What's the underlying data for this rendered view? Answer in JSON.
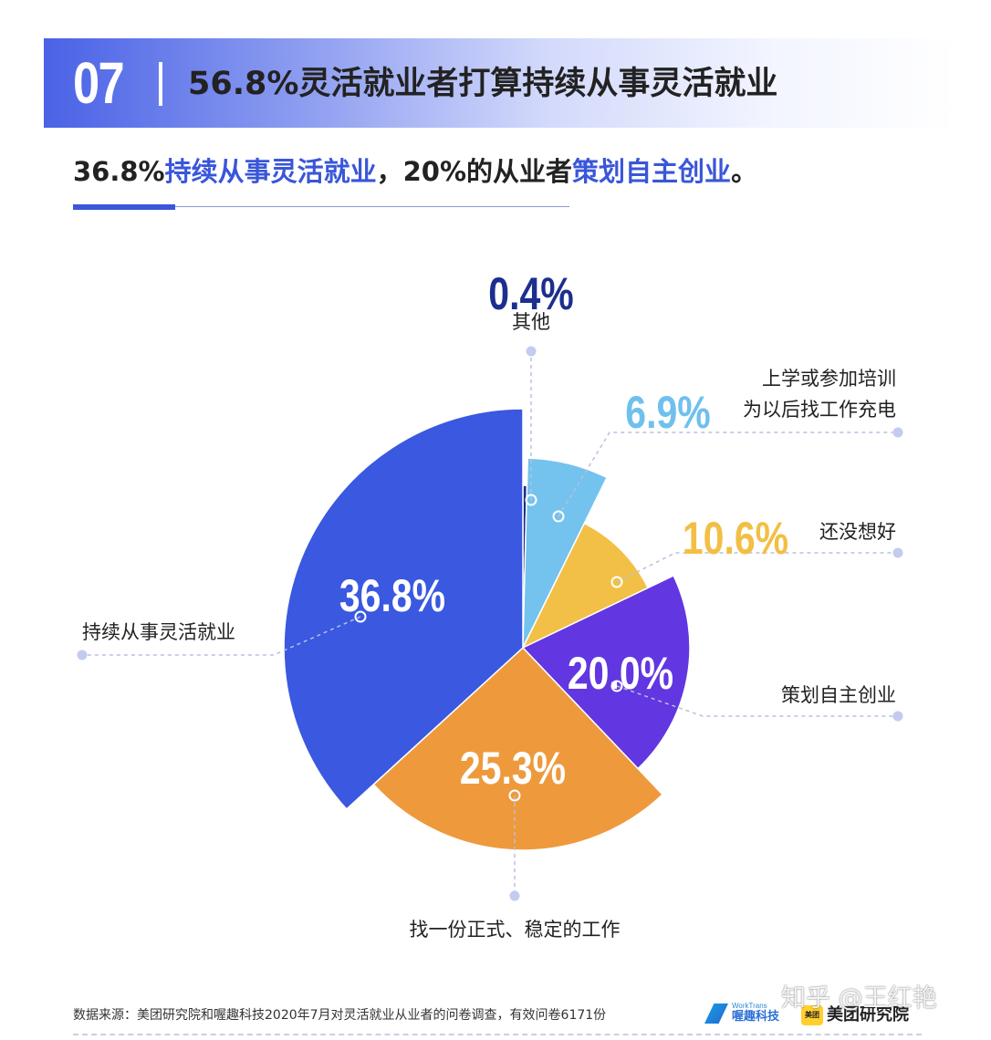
{
  "header": {
    "number": "07",
    "title": "56.8%灵活就业者打算持续从事灵活就业"
  },
  "subtitle": {
    "part1": "36.8%",
    "highlight1": "持续从事灵活就业",
    "part2": "，20%的从业者",
    "highlight2": "策划自主创业",
    "part3": "。"
  },
  "chart_data": {
    "type": "pie",
    "slices": [
      {
        "label": "其他",
        "value": 0.4,
        "value_label": "0.4%",
        "color": "#1a2d8c"
      },
      {
        "label_lines": [
          "上学或参加培训",
          "为以后找工作充电"
        ],
        "value": 6.9,
        "value_label": "6.9%",
        "color": "#74c2ee"
      },
      {
        "label": "还没想好",
        "value": 10.6,
        "value_label": "10.6%",
        "color": "#f2c047"
      },
      {
        "label": "策划自主创业",
        "value": 20.0,
        "value_label": "20.0%",
        "color": "#6236e0"
      },
      {
        "label": "找一份正式、稳定的工作",
        "value": 25.3,
        "value_label": "25.3%",
        "color": "#ee9a3c"
      },
      {
        "label": "持续从事灵活就业",
        "value": 36.8,
        "value_label": "36.8%",
        "color": "#3a58e0"
      }
    ],
    "radius_by_value": true
  },
  "footer": {
    "source": "数据来源：美团研究院和喔趣科技2020年7月对灵活就业从业者的问卷调查，有效问卷6171份",
    "logo1_en": "WorkTrans",
    "logo1_cn": "喔趣科技",
    "logo2_mark": "美团",
    "logo2_cn": "美团研究院"
  },
  "watermark": "知乎 @王红艳"
}
